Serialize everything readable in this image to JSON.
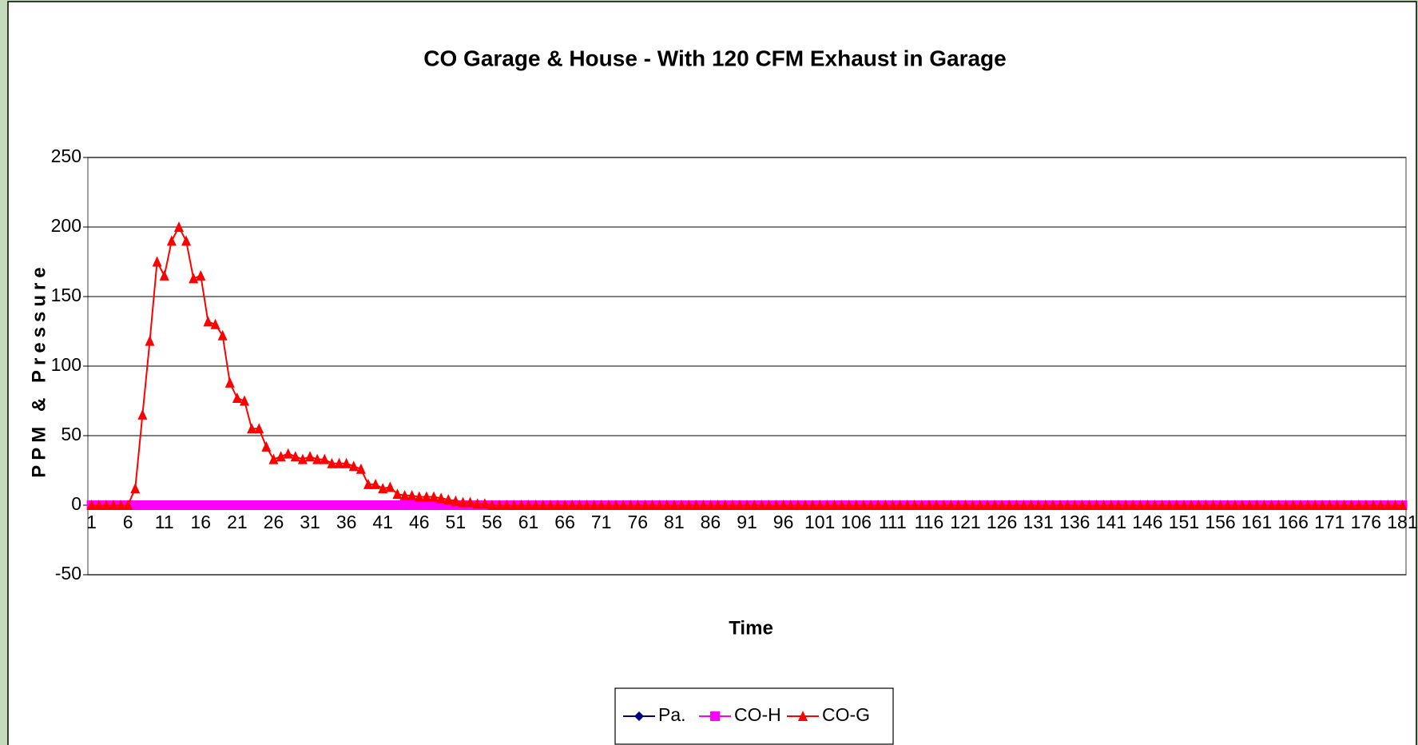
{
  "chart_data": {
    "type": "line",
    "title": "CO Garage & House - With 120 CFM Exhaust in Garage",
    "x_label": "Time",
    "y_label": "PPM & Pressure",
    "categories": [
      1,
      null,
      null,
      null,
      null,
      6,
      null,
      null,
      null,
      null,
      11,
      null,
      null,
      null,
      null,
      16,
      null,
      null,
      null,
      null,
      21,
      null,
      null,
      null,
      null,
      26,
      null,
      null,
      null,
      null,
      31,
      null,
      null,
      null,
      null,
      36,
      null,
      null,
      null,
      null,
      41,
      null,
      null,
      null,
      null,
      46,
      null,
      null,
      null,
      null,
      51,
      null,
      null,
      null,
      null,
      56,
      null,
      null,
      null,
      null,
      61,
      null,
      null,
      null,
      null,
      66,
      null,
      null,
      null,
      null,
      71,
      null,
      null,
      null,
      null,
      76,
      null,
      null,
      null,
      null,
      81,
      null,
      null,
      null,
      null,
      86,
      null,
      null,
      null,
      null,
      91,
      null,
      null,
      null,
      null,
      96,
      null,
      null,
      null,
      null,
      101,
      null,
      null,
      null,
      null,
      106,
      null,
      null,
      null,
      null,
      111,
      null,
      null,
      null,
      null,
      116,
      null,
      null,
      null,
      null,
      121,
      null,
      null,
      null,
      null,
      126,
      null,
      null,
      null,
      null,
      131,
      null,
      null,
      null,
      null,
      136,
      null,
      null,
      null,
      null,
      141,
      null,
      null,
      null,
      null,
      146,
      null,
      null,
      null,
      null,
      151,
      null,
      null,
      null,
      null,
      156,
      null,
      null,
      null,
      null,
      161,
      null,
      null,
      null,
      null,
      166,
      null,
      null,
      null,
      null,
      171,
      null,
      null,
      null,
      null,
      176,
      null,
      null,
      null,
      null,
      181
    ],
    "series": [
      {
        "name": "Pa.",
        "color": "#000080",
        "marker": "diamond",
        "values": [
          0,
          0,
          0,
          0,
          0,
          0,
          0,
          0,
          0,
          0,
          0,
          0,
          0,
          0,
          0,
          0,
          0,
          0,
          0,
          0,
          0,
          0,
          0,
          0,
          0,
          0,
          0,
          0,
          0,
          0,
          0,
          0,
          0,
          0,
          0,
          0,
          0,
          0,
          0,
          0,
          0,
          0,
          0,
          0,
          0,
          0,
          0,
          0,
          0,
          0,
          0,
          0,
          0,
          0,
          0,
          0,
          0,
          0,
          0,
          0,
          0,
          0,
          0,
          0,
          0,
          0,
          0,
          0,
          0,
          0,
          0,
          0,
          0,
          0,
          0,
          0,
          0,
          0,
          0,
          0,
          0,
          0,
          0,
          0,
          0,
          0,
          0,
          0,
          0,
          0,
          0,
          0,
          0,
          0,
          0,
          0,
          0,
          0,
          0,
          0,
          0,
          0,
          0,
          0,
          0,
          0,
          0,
          0,
          0,
          0,
          0,
          0,
          0,
          0,
          0,
          0,
          0,
          0,
          0,
          0,
          0,
          0,
          0,
          0,
          0,
          0,
          0,
          0,
          0,
          0,
          0,
          0,
          0,
          0,
          0,
          0,
          0,
          0,
          0,
          0,
          0,
          0,
          0,
          0,
          0,
          0,
          0,
          0,
          0,
          0,
          0,
          0,
          0,
          0,
          0,
          0,
          0,
          0,
          0,
          0,
          0,
          0,
          0,
          0,
          0,
          0,
          0,
          0,
          0,
          0,
          0,
          0,
          0,
          0,
          0,
          0,
          0,
          0,
          0,
          0,
          0
        ]
      },
      {
        "name": "CO-H",
        "color": "#ff00ff",
        "marker": "square",
        "values": [
          0,
          0,
          0,
          0,
          0,
          0,
          0,
          0,
          0,
          0,
          0,
          0,
          0,
          0,
          0,
          0,
          0,
          0,
          0,
          0,
          0,
          0,
          0,
          0,
          0,
          0,
          0,
          0,
          0,
          0,
          0,
          0,
          0,
          0,
          0,
          0,
          0,
          0,
          0,
          0,
          0,
          0,
          0,
          0,
          0,
          0,
          0,
          0,
          0,
          0,
          0,
          0,
          0,
          0,
          0,
          0,
          0,
          0,
          0,
          0,
          0,
          0,
          0,
          0,
          0,
          0,
          0,
          0,
          0,
          0,
          0,
          0,
          0,
          0,
          0,
          0,
          0,
          0,
          0,
          0,
          0,
          0,
          0,
          0,
          0,
          0,
          0,
          0,
          0,
          0,
          0,
          0,
          0,
          0,
          0,
          0,
          0,
          0,
          0,
          0,
          0,
          0,
          0,
          0,
          0,
          0,
          0,
          0,
          0,
          0,
          0,
          0,
          0,
          0,
          0,
          0,
          0,
          0,
          0,
          0,
          0,
          0,
          0,
          0,
          0,
          0,
          0,
          0,
          0,
          0,
          0,
          0,
          0,
          0,
          0,
          0,
          0,
          0,
          0,
          0,
          0,
          0,
          0,
          0,
          0,
          0,
          0,
          0,
          0,
          0,
          0,
          0,
          0,
          0,
          0,
          0,
          0,
          0,
          0,
          0,
          0,
          0,
          0,
          0,
          0,
          0,
          0,
          0,
          0,
          0,
          0,
          0,
          0,
          0,
          0,
          0,
          0,
          0,
          0,
          0,
          0
        ]
      },
      {
        "name": "CO-G",
        "color": "#ff0000",
        "marker": "triangle",
        "values": [
          0,
          0,
          0,
          0,
          0,
          0,
          12,
          65,
          118,
          175,
          165,
          190,
          200,
          190,
          163,
          165,
          132,
          130,
          122,
          88,
          77,
          75,
          55,
          55,
          42,
          33,
          35,
          37,
          35,
          33,
          35,
          33,
          33,
          30,
          30,
          30,
          28,
          26,
          15,
          15,
          12,
          13,
          8,
          7,
          7,
          6,
          6,
          6,
          5,
          4,
          3,
          2,
          2,
          1,
          1,
          0,
          0,
          0,
          0,
          0,
          0,
          0,
          0,
          0,
          0,
          0,
          0,
          0,
          0,
          0,
          0,
          0,
          0,
          0,
          0,
          0,
          0,
          0,
          0,
          0,
          0,
          0,
          0,
          0,
          0,
          0,
          0,
          0,
          0,
          0,
          0,
          0,
          0,
          0,
          0,
          0,
          0,
          0,
          0,
          0,
          0,
          0,
          0,
          0,
          0,
          0,
          0,
          0,
          0,
          0,
          0,
          0,
          0,
          0,
          0,
          0,
          0,
          0,
          0,
          0,
          0,
          0,
          0,
          0,
          0,
          0,
          0,
          0,
          0,
          0,
          0,
          0,
          0,
          0,
          0,
          0,
          0,
          0,
          0,
          0,
          0,
          0,
          0,
          0,
          0,
          0,
          0,
          0,
          0,
          0,
          0,
          0,
          0,
          0,
          0,
          0,
          0,
          0,
          0,
          0,
          0,
          0,
          0,
          0,
          0,
          0,
          0,
          0,
          0,
          0,
          0,
          0,
          0,
          0,
          0,
          0,
          0,
          0,
          0,
          0,
          0
        ]
      }
    ],
    "ylim": [
      -50,
      250
    ],
    "yticks": [
      -50,
      0,
      50,
      100,
      150,
      200,
      250
    ],
    "grid": true,
    "legend": "bottom"
  }
}
